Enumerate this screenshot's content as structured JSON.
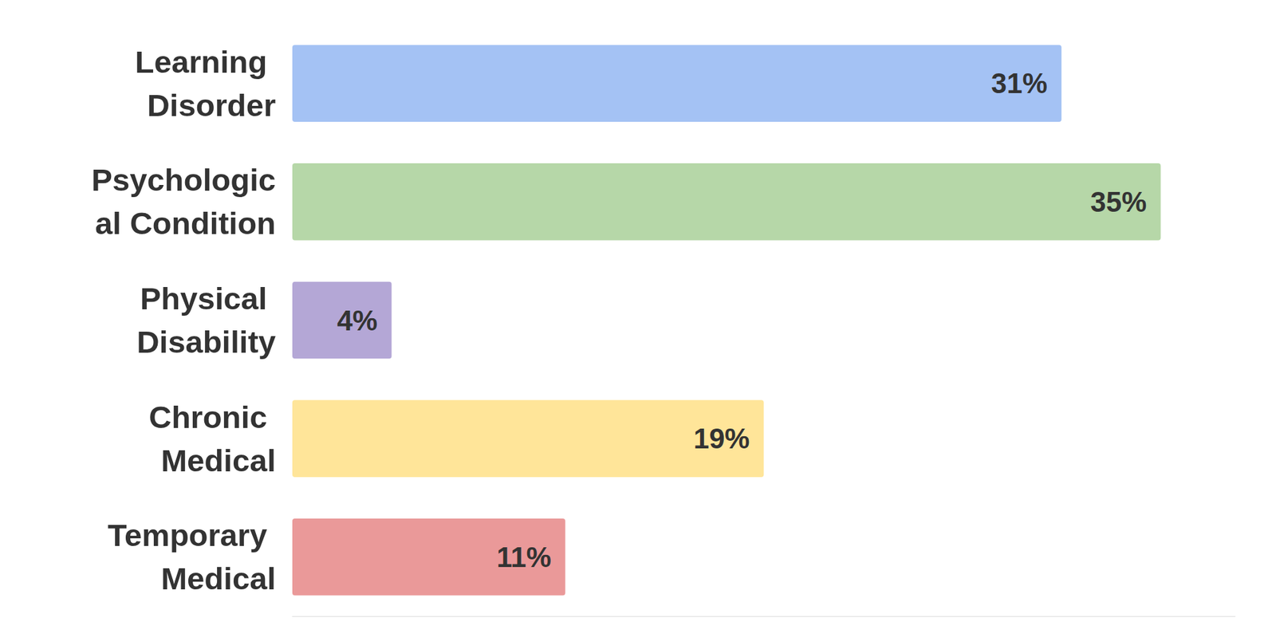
{
  "chart_data": {
    "type": "bar",
    "orientation": "horizontal",
    "categories": [
      "Learning Disorder",
      "Psychological Condition",
      "Physical Disability",
      "Chronic Medical",
      "Temporary Medical"
    ],
    "values": [
      31,
      35,
      4,
      19,
      11
    ],
    "value_labels": [
      "31%",
      "35%",
      "4%",
      "19%",
      "11%"
    ],
    "colors": [
      "#a4c2f4",
      "#b6d7a8",
      "#b4a7d6",
      "#ffe599",
      "#ea9999"
    ],
    "xlim": [
      0,
      38
    ],
    "grid": false,
    "data_labels": true,
    "tick_labels": "y"
  }
}
